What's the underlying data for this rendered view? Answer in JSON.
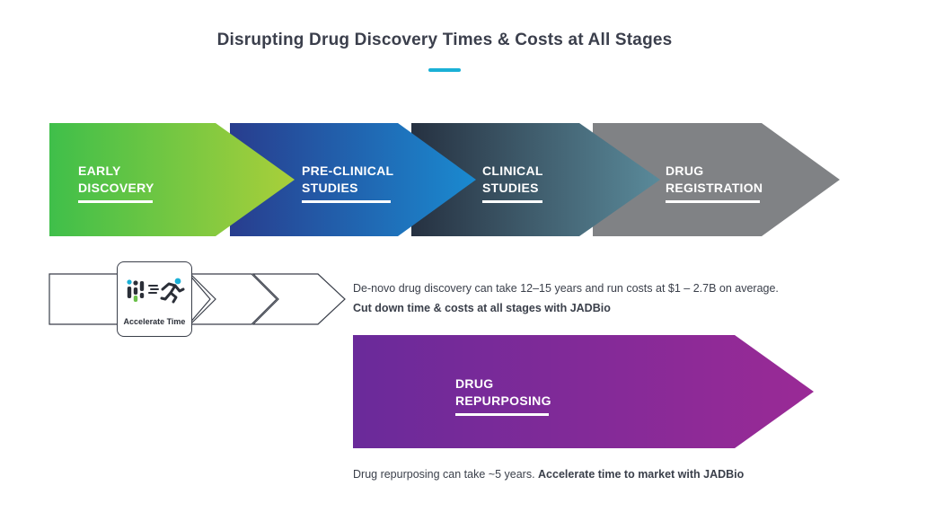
{
  "title": "Disrupting Drug Discovery Times & Costs at All Stages",
  "stages": [
    {
      "line1": "EARLY",
      "line2": "DISCOVERY",
      "color_start": "#3fbf4a",
      "color_end": "#a9cf3a"
    },
    {
      "line1": "PRE-CLINICAL",
      "line2": "STUDIES",
      "color_start": "#283d8e",
      "color_end": "#1a8ad0"
    },
    {
      "line1": "CLINICAL",
      "line2": "STUDIES",
      "color_start": "#263141",
      "color_end": "#5a8a9a"
    },
    {
      "line1": "DRUG",
      "line2": "REGISTRATION",
      "color_start": "#808285",
      "color_end": "#808285"
    }
  ],
  "badge": {
    "label": "Accelerate Time",
    "icon": "runner-icon"
  },
  "traditional": {
    "line1": "De-novo drug discovery can take 12–15 years and run costs at $1 – 2.7B on average.",
    "line2": "Cut down time & costs at all stages with JADBio"
  },
  "repurposing": {
    "line1": "DRUG",
    "line2": "REPURPOSING",
    "color_start": "#6a2a9a",
    "color_end": "#9a2a96",
    "desc_plain": "Drug repurposing can take ~5 years. ",
    "desc_bold": "Accelerate time to market with JADBio"
  },
  "colors": {
    "accent": "#1ab0d6",
    "text": "#3a3f4a"
  }
}
